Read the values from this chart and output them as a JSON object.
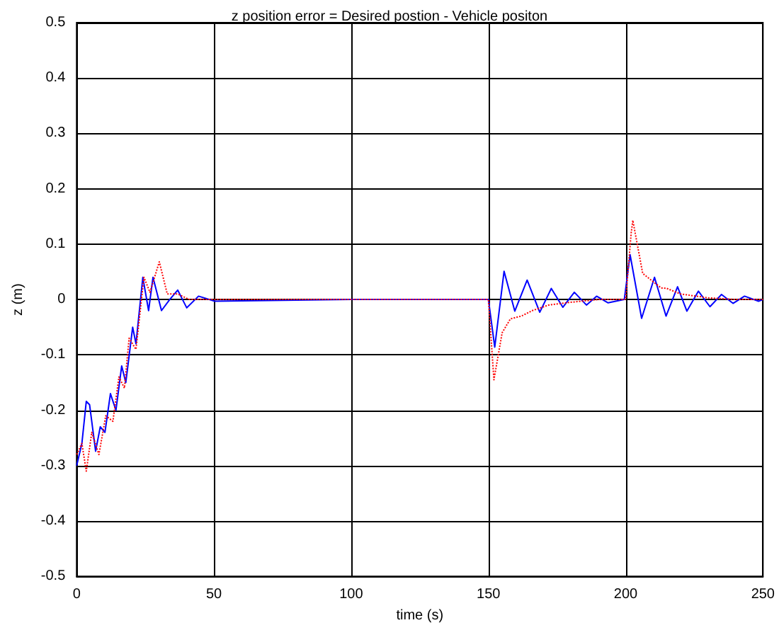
{
  "chart_data": {
    "type": "line",
    "title": "z position error = Desired postion - Vehicle positon",
    "xlabel": "time (s)",
    "ylabel": "z (m)",
    "xlim": [
      0,
      250
    ],
    "xticks": [
      0,
      50,
      100,
      150,
      200,
      250
    ],
    "ylim": [
      -0.5,
      0.5
    ],
    "yticks": [
      -0.5,
      -0.4,
      -0.3,
      -0.2,
      -0.1,
      0,
      0.1,
      0.2,
      0.3,
      0.4,
      0.5
    ],
    "grid": true,
    "marker": "none",
    "series": [
      {
        "color": "#0000ff",
        "line_style": "solid",
        "x": [
          0,
          1.9,
          3.5,
          4.7,
          6.9,
          8.6,
          10.3,
          12.3,
          14.3,
          16.4,
          17.9,
          20.4,
          21.6,
          24.1,
          26.2,
          27.8,
          30.9,
          33.9,
          36.8,
          40.1,
          44.4,
          50.3,
          100,
          150,
          152.3,
          155.7,
          159.6,
          164.1,
          168.7,
          172.9,
          177.1,
          181.3,
          185.7,
          189.4,
          193.6,
          199.5,
          201.6,
          205.8,
          210.5,
          214.7,
          218.9,
          222.3,
          226.5,
          230.7,
          234.9,
          239.1,
          243.3,
          248.4,
          250
        ],
        "values": [
          -0.3,
          -0.26,
          -0.184,
          -0.19,
          -0.274,
          -0.23,
          -0.24,
          -0.17,
          -0.2,
          -0.12,
          -0.15,
          -0.05,
          -0.08,
          0.04,
          -0.02,
          0.04,
          -0.02,
          0,
          0.017,
          -0.015,
          0.006,
          -0.003,
          0,
          0,
          -0.086,
          0.051,
          -0.021,
          0.035,
          -0.023,
          0.02,
          -0.014,
          0.013,
          -0.01,
          0.006,
          -0.006,
          0,
          0.081,
          -0.034,
          0.04,
          -0.03,
          0.023,
          -0.021,
          0.015,
          -0.013,
          0.009,
          -0.007,
          0.006,
          -0.003,
          0
        ]
      },
      {
        "color": "#ff0000",
        "line_style": "dotted",
        "x": [
          0,
          1.9,
          3.5,
          5.5,
          8.1,
          10.6,
          13.2,
          15.4,
          17.4,
          19.1,
          21.6,
          24.5,
          26.7,
          30.1,
          33,
          36.8,
          41,
          100,
          150,
          152,
          155,
          158,
          162,
          166,
          172,
          180,
          190,
          200,
          202,
          202.6,
          206.2,
          208,
          212.9,
          215,
          220,
          230,
          240,
          250
        ],
        "values": [
          -0.28,
          -0.26,
          -0.31,
          -0.24,
          -0.28,
          -0.21,
          -0.22,
          -0.14,
          -0.16,
          -0.07,
          -0.09,
          0.04,
          0.013,
          0.068,
          0.01,
          0.01,
          0,
          0,
          0,
          -0.145,
          -0.06,
          -0.035,
          -0.03,
          -0.02,
          -0.01,
          -0.005,
          0,
          0,
          0.12,
          0.143,
          0.047,
          0.04,
          0.021,
          0.02,
          0.01,
          0.003,
          0,
          0
        ]
      }
    ]
  }
}
